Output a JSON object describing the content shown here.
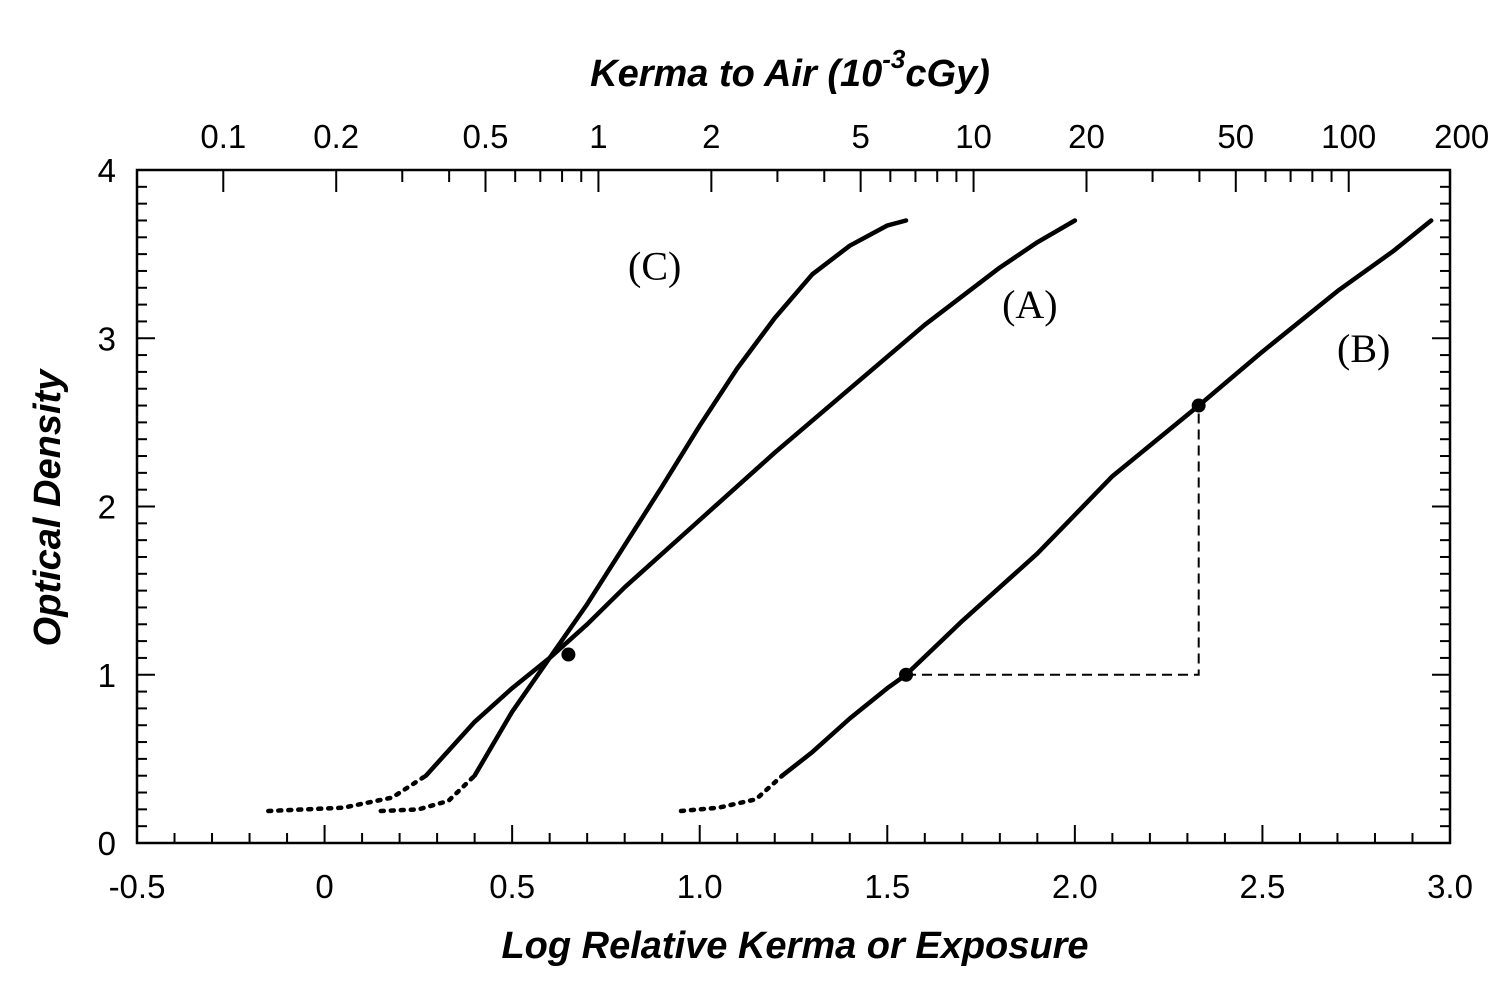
{
  "chart_data": {
    "type": "line",
    "xlabel": "Log Relative Kerma or Exposure",
    "ylabel": "Optical Density",
    "top_axis": {
      "title_prefix": "Kerma to Air  (10",
      "title_exponent": "-3",
      "title_suffix": "cGy)",
      "tick_labels": [
        "0.1",
        "0.2",
        "0.5",
        "1",
        "2",
        "5",
        "10",
        "20",
        "50",
        "100",
        "200"
      ],
      "tick_values": [
        0.1,
        0.2,
        0.5,
        1,
        2,
        5,
        10,
        20,
        50,
        100,
        200
      ]
    },
    "xlim": [
      -0.5,
      3.0
    ],
    "ylim": [
      0,
      4
    ],
    "x_ticks": [
      -0.5,
      0,
      0.5,
      1.0,
      1.5,
      2.0,
      2.5,
      3.0
    ],
    "x_tick_labels": [
      "-0.5",
      "0",
      "0.5",
      "1.0",
      "1.5",
      "2.0",
      "2.5",
      "3.0"
    ],
    "y_ticks": [
      0,
      1,
      2,
      3,
      4
    ],
    "y_tick_labels": [
      "0",
      "1",
      "2",
      "3",
      "4"
    ],
    "grid": false,
    "series": [
      {
        "name": "(C)",
        "solid": [
          [
            0.4,
            0.4
          ],
          [
            0.5,
            0.78
          ],
          [
            0.6,
            1.1
          ],
          [
            0.7,
            1.42
          ],
          [
            0.8,
            1.77
          ],
          [
            0.9,
            2.12
          ],
          [
            1.0,
            2.48
          ],
          [
            1.1,
            2.82
          ],
          [
            1.2,
            3.12
          ],
          [
            1.3,
            3.38
          ],
          [
            1.4,
            3.55
          ],
          [
            1.5,
            3.67
          ],
          [
            1.55,
            3.7
          ]
        ],
        "dotted": [
          [
            0.15,
            0.19
          ],
          [
            0.25,
            0.2
          ],
          [
            0.33,
            0.25
          ],
          [
            0.4,
            0.4
          ]
        ]
      },
      {
        "name": "(A)",
        "solid": [
          [
            0.27,
            0.4
          ],
          [
            0.4,
            0.72
          ],
          [
            0.5,
            0.92
          ],
          [
            0.6,
            1.1
          ],
          [
            0.7,
            1.3
          ],
          [
            0.8,
            1.52
          ],
          [
            1.0,
            1.92
          ],
          [
            1.2,
            2.32
          ],
          [
            1.4,
            2.7
          ],
          [
            1.6,
            3.08
          ],
          [
            1.7,
            3.25
          ],
          [
            1.8,
            3.42
          ],
          [
            1.9,
            3.57
          ],
          [
            2.0,
            3.7
          ]
        ],
        "dotted": [
          [
            -0.15,
            0.19
          ],
          [
            0.05,
            0.21
          ],
          [
            0.18,
            0.27
          ],
          [
            0.27,
            0.4
          ]
        ]
      },
      {
        "name": "(B)",
        "solid": [
          [
            1.22,
            0.4
          ],
          [
            1.3,
            0.54
          ],
          [
            1.4,
            0.74
          ],
          [
            1.5,
            0.92
          ],
          [
            1.55,
            1.0
          ],
          [
            1.7,
            1.32
          ],
          [
            1.9,
            1.72
          ],
          [
            2.1,
            2.18
          ],
          [
            2.33,
            2.6
          ],
          [
            2.5,
            2.92
          ],
          [
            2.7,
            3.28
          ],
          [
            2.85,
            3.52
          ],
          [
            2.95,
            3.7
          ]
        ],
        "dotted": [
          [
            0.95,
            0.19
          ],
          [
            1.05,
            0.21
          ],
          [
            1.15,
            0.26
          ],
          [
            1.22,
            0.4
          ]
        ]
      }
    ],
    "markers": [
      [
        0.65,
        1.12
      ],
      [
        1.55,
        1.0
      ],
      [
        2.33,
        2.6
      ]
    ],
    "guide_lines": [
      [
        1.55,
        1.0
      ],
      [
        2.33,
        1.0
      ],
      [
        2.33,
        2.6
      ]
    ]
  }
}
